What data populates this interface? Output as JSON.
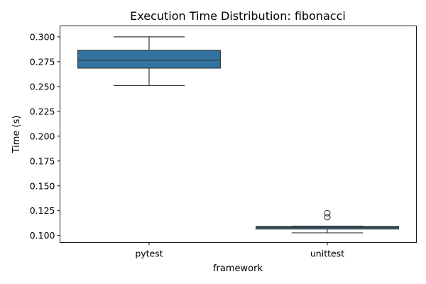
{
  "chart_data": {
    "type": "box",
    "title": "Execution Time Distribution: fibonacci",
    "xlabel": "framework",
    "ylabel": "Time (s)",
    "categories": [
      "pytest",
      "unittest"
    ],
    "ylim": [
      0.093,
      0.311
    ],
    "yticks": [
      0.1,
      0.125,
      0.15,
      0.175,
      0.2,
      0.225,
      0.25,
      0.275,
      0.3
    ],
    "ytick_labels": [
      "0.100",
      "0.125",
      "0.150",
      "0.175",
      "0.200",
      "0.225",
      "0.250",
      "0.275",
      "0.300"
    ],
    "color": "#3274a1",
    "grid": false,
    "boxes": [
      {
        "category": "pytest",
        "whisker_low": 0.251,
        "q1": 0.2685,
        "median": 0.2765,
        "q3": 0.2865,
        "whisker_high": 0.3,
        "outliers": []
      },
      {
        "category": "unittest",
        "whisker_low": 0.1027,
        "q1": 0.1065,
        "median": 0.108,
        "q3": 0.1092,
        "whisker_high": 0.1095,
        "outliers": [
          0.1225,
          0.1185
        ]
      }
    ]
  }
}
